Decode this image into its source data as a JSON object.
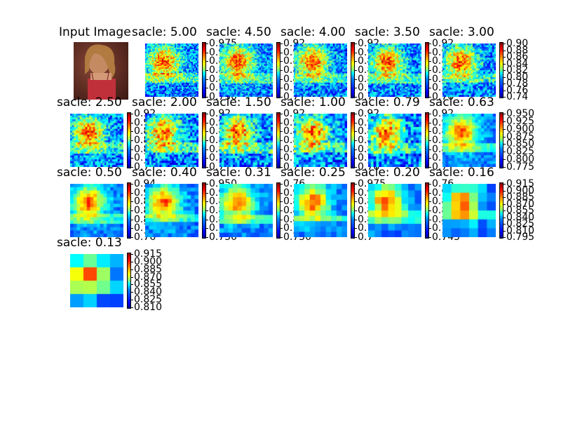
{
  "chart_data": {
    "type": "heatmap",
    "input_title": "Input Image",
    "panels": [
      {
        "label": "sacle: 5.00",
        "ticks": [
          "0.975",
          "0.9",
          "0.8",
          "0.8",
          "0.8",
          "0.7",
          "0.750"
        ]
      },
      {
        "label": "sacle: 4.50",
        "ticks": [
          "0.92",
          "0.9",
          "0.8",
          "0.8",
          "0.8",
          "0.7",
          "0.7"
        ]
      },
      {
        "label": "sacle: 4.00",
        "ticks": [
          "0.92",
          "0.9",
          "0.8",
          "0.8",
          "0.8",
          "0.7",
          "0.7"
        ]
      },
      {
        "label": "sacle: 3.50",
        "ticks": [
          "0.92",
          "0.9",
          "0.8",
          "0.8",
          "0.8",
          "0.7",
          "0.76"
        ]
      },
      {
        "label": "sacle: 3.00",
        "ticks": [
          "0.90",
          "0.88",
          "0.86",
          "0.84",
          "0.82",
          "0.80",
          "0.78",
          "0.76",
          "0.74"
        ]
      },
      {
        "label": "sacle: 2.50",
        "ticks": [
          "0.92",
          "0.9",
          "0.8",
          "0.8",
          "0.8",
          "0.7",
          "0.7"
        ]
      },
      {
        "label": "sacle: 2.00",
        "ticks": [
          "0.92",
          "0.9",
          "0.8",
          "0.8",
          "0.8",
          "0.7",
          "0.7"
        ]
      },
      {
        "label": "sacle: 1.50",
        "ticks": [
          "0.92",
          "0.9",
          "0.8",
          "0.8",
          "0.8",
          "0.7",
          "0.7"
        ]
      },
      {
        "label": "sacle: 1.00",
        "ticks": [
          "0.92",
          "0.9",
          "0.8",
          "0.8",
          "0.8",
          "0.7",
          "0.76"
        ]
      },
      {
        "label": "sacle: 0.79",
        "ticks": [
          "0.92",
          "0.9",
          "0.8",
          "0.8",
          "0.8",
          "0.7",
          "0.7"
        ]
      },
      {
        "label": "sacle: 0.63",
        "ticks": [
          "0.950",
          "0.925",
          "0.900",
          "0.875",
          "0.850",
          "0.825",
          "0.800",
          "0.775"
        ]
      },
      {
        "label": "sacle: 0.50",
        "ticks": [
          "0.94",
          "0.9",
          "0.8",
          "0.8",
          "0.8",
          "0.7",
          "0.76"
        ]
      },
      {
        "label": "sacle: 0.40",
        "ticks": [
          "0.950",
          "0.9",
          "0.8",
          "0.8",
          "0.8",
          "0.7",
          "0.750"
        ]
      },
      {
        "label": "sacle: 0.31",
        "ticks": [
          "0.76",
          "0.9",
          "0.8",
          "0.8",
          "0.8",
          "0.7",
          "0.750"
        ]
      },
      {
        "label": "sacle: 0.25",
        "ticks": [
          "0.975",
          "0.9",
          "0.8",
          "0.8",
          "0.8",
          "0.7",
          "0.7"
        ]
      },
      {
        "label": "sacle: 0.20",
        "ticks": [
          "0.76",
          "0.9",
          "0.8",
          "0.8",
          "0.8",
          "0.7",
          "0.745"
        ]
      },
      {
        "label": "sacle: 0.16",
        "ticks": [
          "0.915",
          "0.900",
          "0.885",
          "0.870",
          "0.855",
          "0.840",
          "0.825",
          "0.810",
          "0.795"
        ]
      },
      {
        "label": "sacle: 0.13",
        "ticks": [
          "0.915",
          "0.900",
          "0.885",
          "0.870",
          "0.855",
          "0.840",
          "0.825",
          "0.810"
        ]
      }
    ],
    "colormap": "jet"
  }
}
